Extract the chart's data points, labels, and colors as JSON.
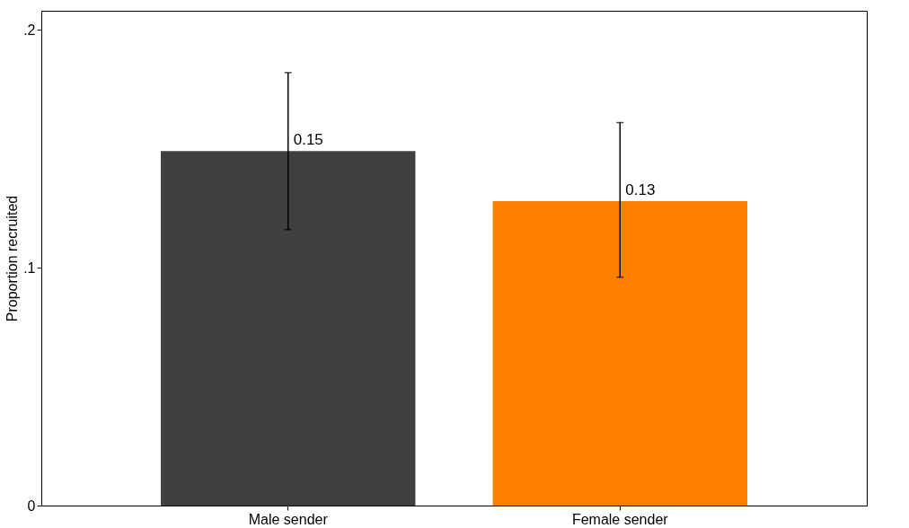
{
  "chart_data": {
    "type": "bar",
    "ylabel": "Proportion recruited",
    "categories": [
      "Male sender",
      "Female sender"
    ],
    "values": [
      0.149,
      0.128
    ],
    "colors": [
      "#404040",
      "#ff8000"
    ],
    "errors": [
      [
        0.116,
        0.182
      ],
      [
        0.096,
        0.161
      ]
    ],
    "value_labels": [
      "0.15",
      "0.13"
    ],
    "ylim": [
      0,
      0.208
    ],
    "yticks": [
      {
        "value": 0,
        "label": "0"
      },
      {
        "value": 0.1,
        "label": ".1"
      },
      {
        "value": 0.2,
        "label": ".2"
      }
    ],
    "grid": false,
    "legend": false
  }
}
